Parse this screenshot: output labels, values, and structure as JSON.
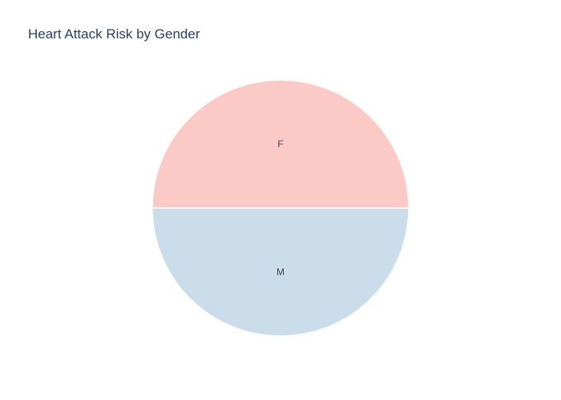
{
  "chart_data": {
    "type": "pie",
    "title": "Heart Attack Risk by Gender",
    "labels": [
      "F",
      "M"
    ],
    "values": [
      50,
      50
    ],
    "colors": [
      "#fbcac6",
      "#cbdcea"
    ],
    "slice_border_color": "#ffffff",
    "legend": "none",
    "show_slice_labels": true
  }
}
